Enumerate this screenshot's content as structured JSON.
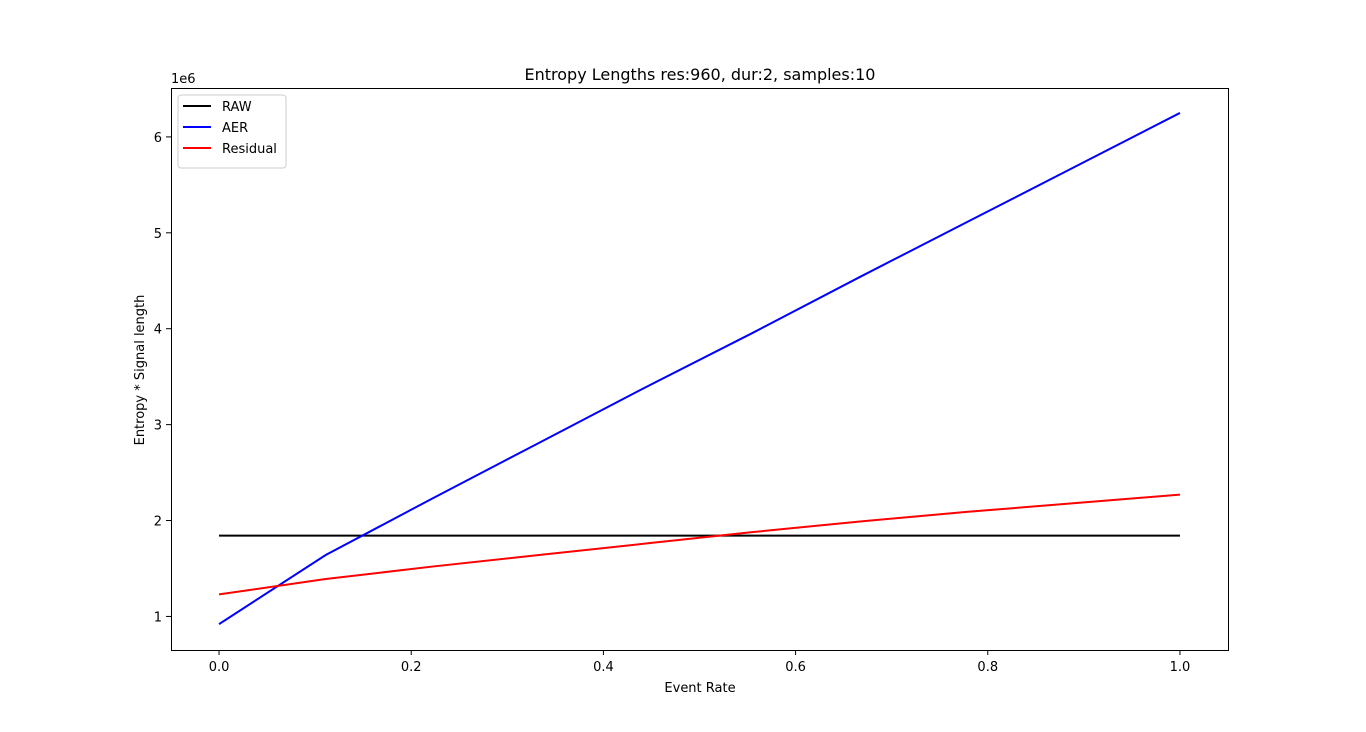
{
  "chart_data": {
    "type": "line",
    "title": "Entropy Lengths res:960, dur:2, samples:10",
    "xlabel": "Event Rate",
    "ylabel": "Entropy * Signal length",
    "y_offset_label": "1e6",
    "xlim": [
      -0.05,
      1.05
    ],
    "ylim": [
      650000,
      6510000
    ],
    "x_ticks": [
      0.0,
      0.2,
      0.4,
      0.6,
      0.8,
      1.0
    ],
    "x_tick_labels": [
      "0.0",
      "0.2",
      "0.4",
      "0.6",
      "0.8",
      "1.0"
    ],
    "y_ticks": [
      1000000,
      2000000,
      3000000,
      4000000,
      5000000,
      6000000
    ],
    "y_tick_labels": [
      "1",
      "2",
      "3",
      "4",
      "5",
      "6"
    ],
    "grid": false,
    "legend_position": "top-left",
    "series": [
      {
        "name": "RAW",
        "color": "#000000",
        "x": [
          0.0,
          1.0
        ],
        "y": [
          1843000,
          1843000
        ]
      },
      {
        "name": "AER",
        "color": "#0000ff",
        "x": [
          0.0,
          0.111,
          0.222,
          0.333,
          0.444,
          0.556,
          0.667,
          0.778,
          0.889,
          1.0
        ],
        "y": [
          920000,
          1640000,
          2230000,
          2810000,
          3390000,
          3960000,
          4540000,
          5110000,
          5680000,
          6250000
        ]
      },
      {
        "name": "Residual",
        "color": "#ff0000",
        "x": [
          0.0,
          0.111,
          0.222,
          0.333,
          0.444,
          0.556,
          0.667,
          0.778,
          0.889,
          1.0
        ],
        "y": [
          1230000,
          1390000,
          1520000,
          1640000,
          1760000,
          1880000,
          1990000,
          2090000,
          2180000,
          2270000
        ]
      }
    ]
  }
}
